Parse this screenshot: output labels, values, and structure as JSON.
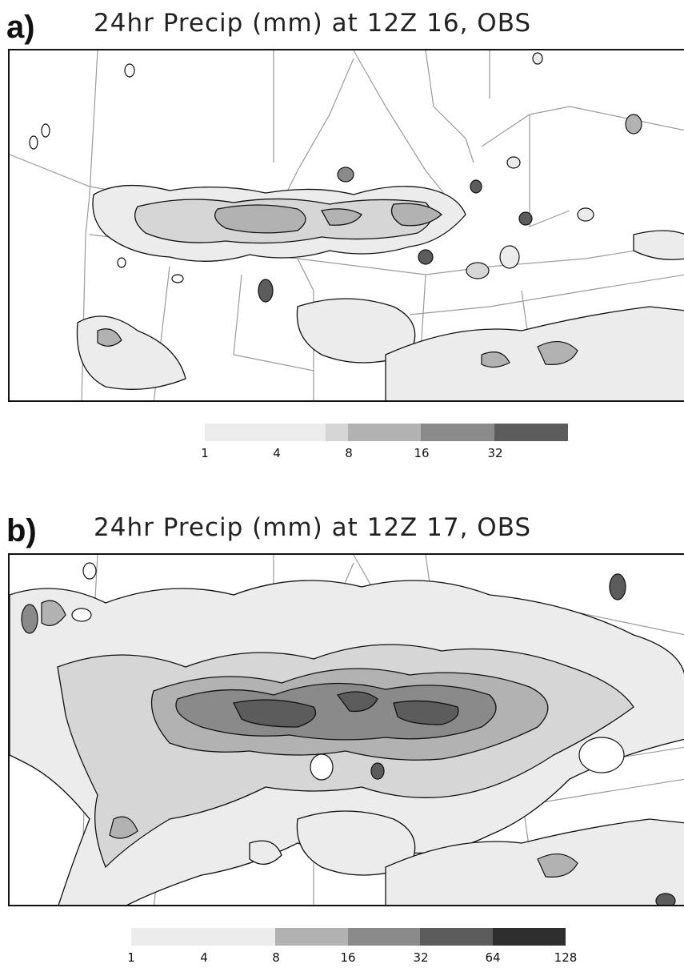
{
  "panels": [
    {
      "letter": "a)",
      "title": "24hr Precip (mm) at 12Z 16, OBS",
      "colorbar": {
        "tick_labels": [
          "1",
          "4",
          "8",
          "16",
          "32"
        ],
        "colors": [
          "#ececec",
          "#d6d6d6",
          "#b2b2b2",
          "#8a8a8a",
          "#5c5c5c"
        ]
      }
    },
    {
      "letter": "b)",
      "title": "24hr Precip (mm) at 12Z 17, OBS",
      "colorbar": {
        "tick_labels": [
          "1",
          "4",
          "8",
          "16",
          "32",
          "64",
          "128"
        ],
        "colors": [
          "#ececec",
          "#d6d6d6",
          "#b2b2b2",
          "#8a8a8a",
          "#5c5c5c",
          "#2e2e2e"
        ]
      }
    }
  ],
  "style": {
    "state_border_color": "#9a9a9a",
    "contour_color": "#111111"
  }
}
